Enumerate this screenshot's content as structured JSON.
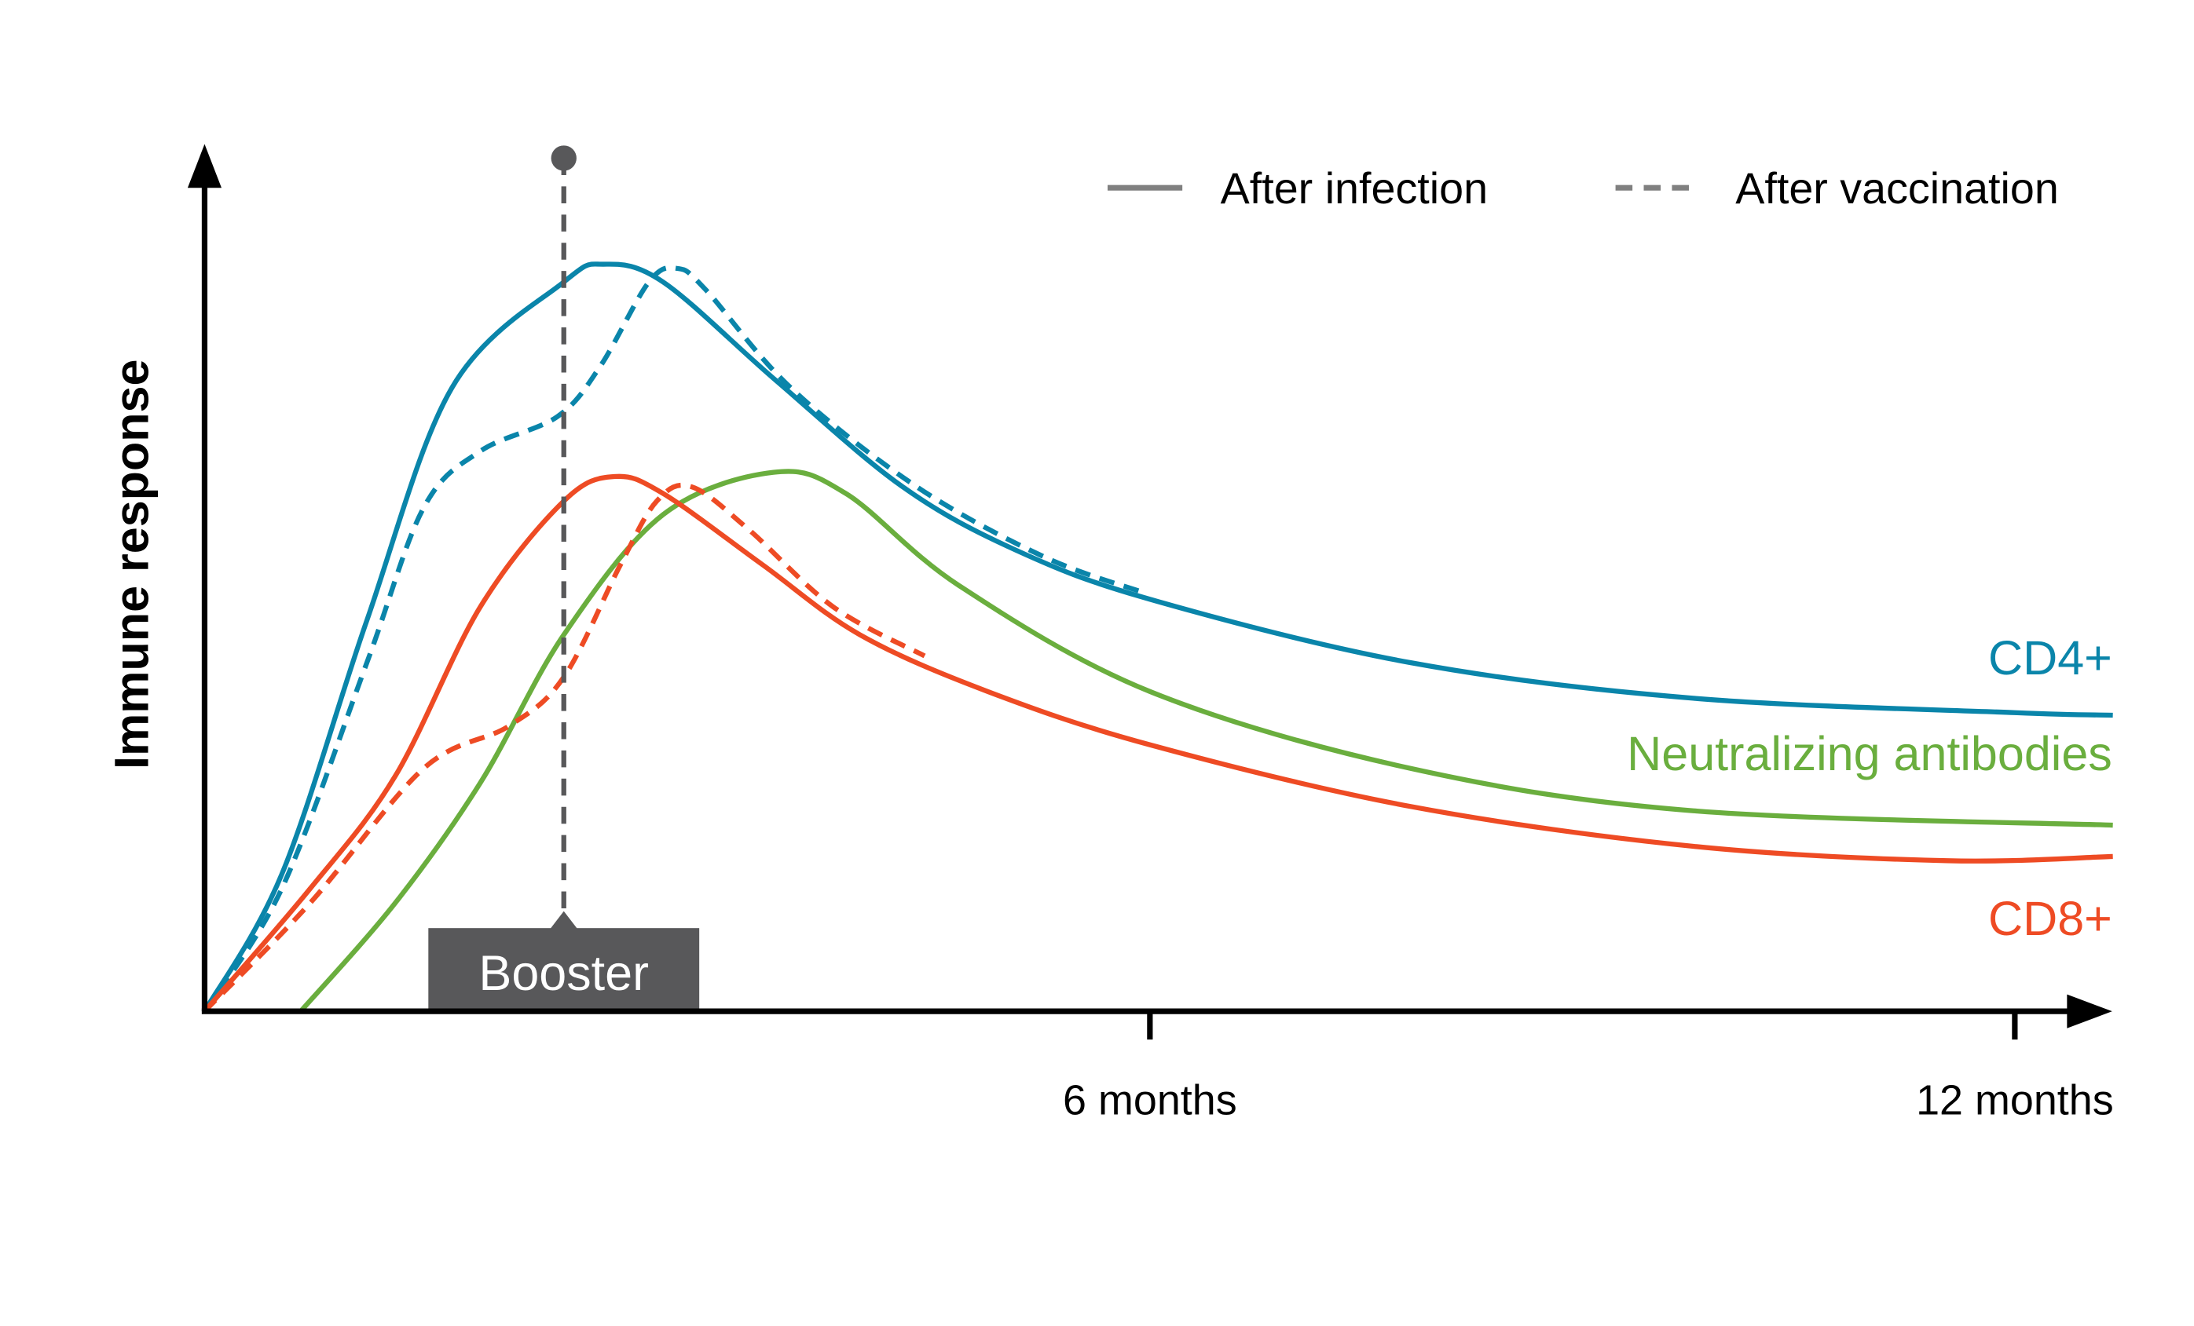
{
  "chart_data": {
    "type": "line",
    "title": "",
    "xlabel": "",
    "ylabel": "Immune response",
    "x_ticks": [
      {
        "value": 6,
        "label": "6 months"
      },
      {
        "value": 12,
        "label": "12 months"
      }
    ],
    "xlim": [
      0,
      12.7
    ],
    "ylim": [
      0,
      100
    ],
    "grid": false,
    "legend": {
      "placement": "top-right",
      "entries": [
        {
          "label": "After infection",
          "style": "solid",
          "color": "#808080"
        },
        {
          "label": "After vaccination",
          "style": "dashed",
          "color": "#808080"
        }
      ]
    },
    "annotation": {
      "label": "Booster",
      "x": 2.28,
      "color": "#58585a"
    },
    "series": [
      {
        "name": "CD4+",
        "label": "CD4+",
        "condition": "After infection",
        "style": "solid",
        "color": "#0a85aa",
        "x": [
          0,
          0.49,
          1.03,
          1.57,
          2.28,
          2.53,
          2.91,
          3.63,
          4.43,
          5.15,
          6.0,
          7.81,
          9.77,
          12.0,
          12.68
        ],
        "y": [
          0,
          16.2,
          46.2,
          73.7,
          86.2,
          88.3,
          86.2,
          74.5,
          62,
          54.5,
          48.7,
          41.2,
          37,
          35.3,
          35
        ]
      },
      {
        "name": "CD4+",
        "condition": "After vaccination",
        "style": "dashed",
        "color": "#0a85aa",
        "x": [
          0,
          0.49,
          1.03,
          1.39,
          1.75,
          2.24,
          2.51,
          2.82,
          3.0,
          3.18,
          3.72,
          4.52,
          5.33,
          5.96
        ],
        "y": [
          0,
          14.5,
          41.2,
          59.5,
          66.2,
          70.3,
          76.2,
          86.2,
          87.8,
          85.3,
          73.7,
          62,
          53.7,
          49.5
        ]
      },
      {
        "name": "Neutralizing antibodies",
        "label": "Neutralizing antibodies",
        "condition": "After infection",
        "style": "solid",
        "color": "#6aae3e",
        "x": [
          0.61,
          1.21,
          1.75,
          2.28,
          2.91,
          3.61,
          4.07,
          4.79,
          6.0,
          7.81,
          9.77,
          12.68
        ],
        "y": [
          0,
          12.8,
          27,
          44.5,
          58.7,
          63.7,
          61.2,
          50.3,
          37.8,
          28.7,
          23.7,
          22
        ]
      },
      {
        "name": "CD8+",
        "label": "CD8+",
        "condition": "After infection",
        "style": "solid",
        "color": "#ee4b24",
        "x": [
          0,
          0.67,
          1.21,
          1.75,
          2.28,
          2.6,
          2.91,
          3.54,
          4.16,
          4.97,
          6.0,
          7.81,
          9.77,
          11.53,
          12.68
        ],
        "y": [
          0,
          14.5,
          27.8,
          47.8,
          60.3,
          63.2,
          61.2,
          52.8,
          44.5,
          37.8,
          31.5,
          24.2,
          19.5,
          17.8,
          18.3
        ]
      },
      {
        "name": "CD8+",
        "condition": "After vaccination",
        "style": "dashed",
        "color": "#ee4b24",
        "x": [
          0,
          0.67,
          1.39,
          1.93,
          2.28,
          2.64,
          2.87,
          3.09,
          3.45,
          3.99,
          4.57
        ],
        "y": [
          0,
          12.8,
          28.7,
          33.7,
          39.5,
          52.8,
          60.3,
          62,
          57,
          47.8,
          42
        ]
      }
    ]
  }
}
